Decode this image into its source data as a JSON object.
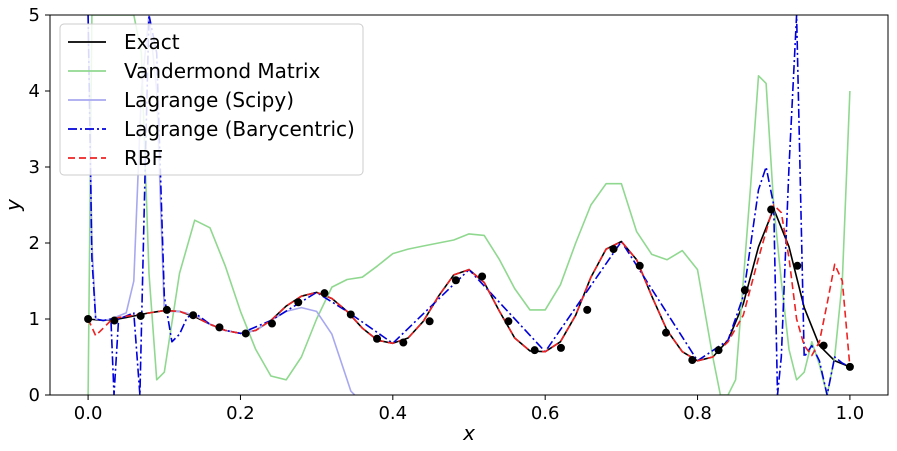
{
  "chart_data": {
    "type": "line",
    "xlabel": "x",
    "ylabel": "y",
    "xlim": [
      -0.05,
      1.05
    ],
    "ylim": [
      0,
      5
    ],
    "xticks": [
      0.0,
      0.2,
      0.4,
      0.6,
      0.8,
      1.0
    ],
    "xtick_labels": [
      "0.0",
      "0.2",
      "0.4",
      "0.6",
      "0.8",
      "1.0"
    ],
    "yticks": [
      0,
      1,
      2,
      3,
      4,
      5
    ],
    "ytick_labels": [
      "0",
      "1",
      "2",
      "3",
      "4",
      "5"
    ],
    "grid": false,
    "legend_position": "upper-left",
    "series": [
      {
        "name": "Exact",
        "color": "#000000",
        "style": "solid",
        "x": [
          0.0,
          0.02,
          0.04,
          0.06,
          0.08,
          0.1,
          0.12,
          0.14,
          0.16,
          0.18,
          0.2,
          0.22,
          0.24,
          0.26,
          0.28,
          0.3,
          0.32,
          0.34,
          0.36,
          0.38,
          0.4,
          0.42,
          0.44,
          0.46,
          0.48,
          0.5,
          0.52,
          0.54,
          0.56,
          0.58,
          0.6,
          0.62,
          0.64,
          0.66,
          0.68,
          0.7,
          0.72,
          0.74,
          0.76,
          0.78,
          0.8,
          0.82,
          0.84,
          0.86,
          0.88,
          0.9,
          0.92,
          0.94,
          0.96,
          0.98,
          1.0
        ],
        "y": [
          1.0,
          0.98,
          1.0,
          1.04,
          1.08,
          1.11,
          1.1,
          1.03,
          0.93,
          0.85,
          0.81,
          0.85,
          0.98,
          1.17,
          1.3,
          1.35,
          1.27,
          1.1,
          0.88,
          0.72,
          0.68,
          0.75,
          0.97,
          1.3,
          1.58,
          1.65,
          1.48,
          1.1,
          0.75,
          0.58,
          0.57,
          0.7,
          1.05,
          1.55,
          1.92,
          2.02,
          1.78,
          1.3,
          0.85,
          0.57,
          0.45,
          0.5,
          0.72,
          1.2,
          1.95,
          2.45,
          1.95,
          1.15,
          0.65,
          0.45,
          0.37
        ]
      },
      {
        "name": "Vandermond Matrix",
        "color": "#90d890",
        "style": "solid",
        "x": [
          0.0,
          0.005,
          0.01,
          0.02,
          0.03,
          0.04,
          0.05,
          0.06,
          0.07,
          0.08,
          0.09,
          0.1,
          0.12,
          0.14,
          0.16,
          0.18,
          0.2,
          0.22,
          0.24,
          0.26,
          0.28,
          0.3,
          0.32,
          0.34,
          0.36,
          0.38,
          0.4,
          0.42,
          0.44,
          0.46,
          0.48,
          0.5,
          0.52,
          0.54,
          0.56,
          0.58,
          0.6,
          0.62,
          0.64,
          0.66,
          0.68,
          0.7,
          0.72,
          0.74,
          0.76,
          0.78,
          0.8,
          0.82,
          0.83,
          0.84,
          0.85,
          0.86,
          0.87,
          0.88,
          0.89,
          0.9,
          0.91,
          0.92,
          0.93,
          0.94,
          0.95,
          0.96,
          0.97,
          0.98,
          0.99,
          1.0
        ],
        "y": [
          0.0,
          5.0,
          5.0,
          5.0,
          5.0,
          5.0,
          5.0,
          5.0,
          4.5,
          1.6,
          0.2,
          0.3,
          1.6,
          2.3,
          2.2,
          1.7,
          1.1,
          0.6,
          0.25,
          0.2,
          0.5,
          1.0,
          1.42,
          1.52,
          1.55,
          1.7,
          1.86,
          1.92,
          1.96,
          2.0,
          2.04,
          2.12,
          2.1,
          1.78,
          1.4,
          1.12,
          1.12,
          1.45,
          2.0,
          2.5,
          2.78,
          2.78,
          2.15,
          1.85,
          1.78,
          1.9,
          1.65,
          0.5,
          0.0,
          0.0,
          0.2,
          1.5,
          2.8,
          4.2,
          4.1,
          2.5,
          1.5,
          0.6,
          0.2,
          0.3,
          0.7,
          0.4,
          0.0,
          0.5,
          1.5,
          4.0
        ]
      },
      {
        "name": "Lagrange (Scipy)",
        "color": "#a8a8f0",
        "style": "solid",
        "x": [
          0.0,
          0.005,
          0.01,
          0.02,
          0.03,
          0.04,
          0.05,
          0.06,
          0.07,
          0.08,
          0.09,
          0.1,
          0.12,
          0.14,
          0.16,
          0.18,
          0.2,
          0.22,
          0.24,
          0.26,
          0.28,
          0.3,
          0.32,
          0.33,
          0.34,
          0.345,
          0.35
        ],
        "y": [
          5.0,
          2.0,
          1.0,
          0.98,
          1.0,
          1.04,
          1.08,
          1.5,
          4.0,
          5.0,
          4.0,
          1.1,
          1.1,
          1.05,
          0.93,
          0.85,
          0.81,
          0.85,
          0.98,
          1.1,
          1.15,
          1.1,
          0.8,
          0.5,
          0.2,
          0.05,
          0.0
        ]
      },
      {
        "name": "Lagrange (Barycentric)",
        "color": "#0000dd",
        "style": "dashdot",
        "x": [
          0.0,
          0.005,
          0.01,
          0.02,
          0.03,
          0.034,
          0.04,
          0.05,
          0.06,
          0.068,
          0.075,
          0.08,
          0.09,
          0.1,
          0.11,
          0.12,
          0.13,
          0.14,
          0.16,
          0.18,
          0.2,
          0.24,
          0.3,
          0.34,
          0.4,
          0.5,
          0.6,
          0.7,
          0.8,
          0.84,
          0.86,
          0.87,
          0.88,
          0.89,
          0.9,
          0.905,
          0.91,
          0.92,
          0.93,
          0.94,
          0.95,
          0.96,
          0.97,
          0.98,
          0.99,
          1.0
        ],
        "y": [
          5.0,
          1.8,
          1.0,
          0.98,
          1.0,
          0.0,
          1.0,
          1.04,
          1.08,
          0.0,
          3.0,
          5.0,
          4.5,
          1.3,
          0.7,
          0.8,
          1.02,
          1.08,
          0.93,
          0.85,
          0.81,
          0.98,
          1.35,
          1.1,
          0.68,
          1.65,
          0.57,
          2.02,
          0.45,
          0.72,
          1.3,
          2.0,
          2.7,
          3.0,
          2.5,
          0.0,
          0.5,
          3.0,
          5.0,
          0.5,
          0.65,
          0.45,
          0.0,
          0.5,
          0.42,
          0.37
        ]
      },
      {
        "name": "RBF",
        "color": "#ee2222",
        "style": "dashed",
        "x": [
          0.0,
          0.01,
          0.02,
          0.03,
          0.04,
          0.06,
          0.08,
          0.1,
          0.12,
          0.14,
          0.16,
          0.18,
          0.2,
          0.22,
          0.24,
          0.26,
          0.28,
          0.3,
          0.32,
          0.34,
          0.36,
          0.38,
          0.4,
          0.42,
          0.44,
          0.46,
          0.48,
          0.5,
          0.52,
          0.54,
          0.56,
          0.58,
          0.6,
          0.62,
          0.64,
          0.66,
          0.68,
          0.7,
          0.72,
          0.74,
          0.76,
          0.78,
          0.8,
          0.82,
          0.84,
          0.86,
          0.88,
          0.9,
          0.91,
          0.92,
          0.93,
          0.94,
          0.95,
          0.96,
          0.97,
          0.98,
          0.99,
          1.0
        ],
        "y": [
          1.0,
          0.78,
          0.88,
          0.98,
          1.02,
          1.05,
          1.08,
          1.11,
          1.1,
          1.03,
          0.93,
          0.85,
          0.81,
          0.85,
          0.98,
          1.17,
          1.3,
          1.35,
          1.27,
          1.1,
          0.88,
          0.72,
          0.68,
          0.75,
          0.97,
          1.3,
          1.58,
          1.65,
          1.48,
          1.1,
          0.75,
          0.58,
          0.57,
          0.7,
          1.05,
          1.55,
          1.92,
          2.02,
          1.78,
          1.3,
          0.85,
          0.57,
          0.45,
          0.5,
          0.7,
          1.05,
          1.8,
          2.5,
          2.4,
          1.8,
          1.0,
          0.65,
          0.52,
          0.7,
          1.2,
          1.72,
          1.5,
          0.37
        ]
      }
    ],
    "sample_points": {
      "color": "#000000",
      "x": [
        0.0,
        0.0345,
        0.069,
        0.1034,
        0.1379,
        0.1724,
        0.2069,
        0.2414,
        0.2759,
        0.3103,
        0.3448,
        0.3793,
        0.4138,
        0.4483,
        0.4828,
        0.5172,
        0.5517,
        0.5862,
        0.6207,
        0.6552,
        0.6897,
        0.7241,
        0.7586,
        0.7931,
        0.8276,
        0.8621,
        0.8966,
        0.931,
        0.9655,
        1.0
      ],
      "y": [
        1.0,
        0.98,
        1.04,
        1.12,
        1.05,
        0.89,
        0.81,
        0.94,
        1.22,
        1.34,
        1.06,
        0.74,
        0.69,
        0.97,
        1.51,
        1.56,
        0.97,
        0.59,
        0.62,
        1.12,
        1.92,
        1.7,
        0.82,
        0.46,
        0.59,
        1.38,
        2.44,
        1.7,
        0.65,
        0.37
      ]
    }
  }
}
